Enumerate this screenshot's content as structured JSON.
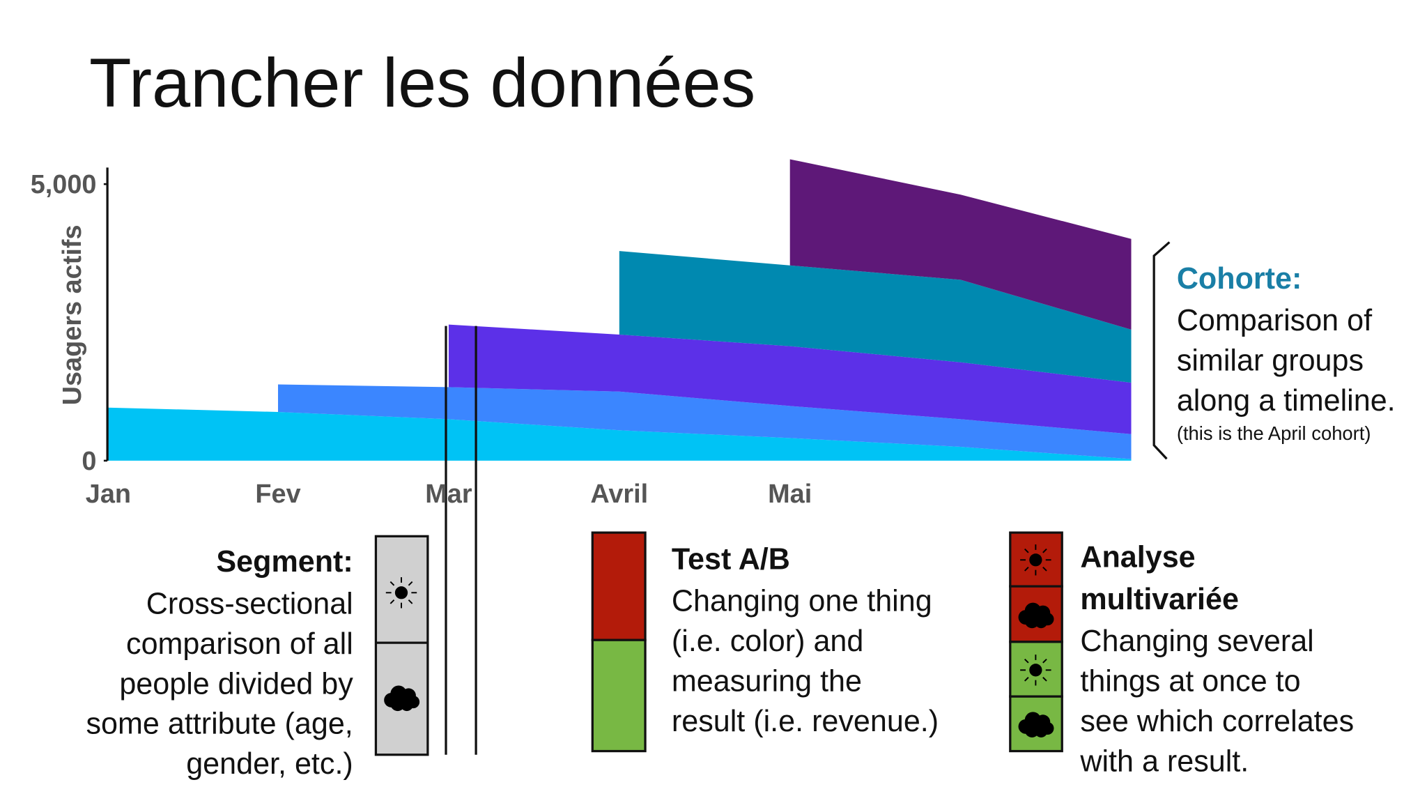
{
  "chart_data": {
    "type": "area",
    "title": "Trancher les données",
    "y_label": "Usagers actifs",
    "categories": [
      "Jan",
      "Fev",
      "Mar",
      "Avril",
      "Mai",
      null,
      null
    ],
    "series": [
      {
        "color": "#00c3f5",
        "values": [
          960,
          880,
          750,
          550,
          410,
          250,
          30
        ]
      },
      {
        "color": "#3b86ff",
        "values": [
          null,
          500,
          580,
          700,
          580,
          500,
          450
        ]
      },
      {
        "color": "#5c30e8",
        "values": [
          null,
          null,
          1130,
          1030,
          1080,
          1030,
          930
        ]
      },
      {
        "color": "#0089b0",
        "values": [
          null,
          null,
          null,
          1510,
          1460,
          1490,
          960
        ]
      },
      {
        "color": "#5e1878",
        "values": [
          null,
          null,
          null,
          null,
          1920,
          1540,
          1640
        ]
      }
    ],
    "ylim": [
      0,
      5300
    ],
    "yticks": [
      0,
      {
        "value": 5000,
        "label": "5,000"
      }
    ],
    "annotations": {
      "cohort": {
        "title": "Cohorte:",
        "lines": [
          "Comparison of",
          "similar groups",
          "along a timeline."
        ],
        "note": "(this is the April cohort)"
      },
      "segment": {
        "title": "Segment:",
        "lines": [
          "Cross-sectional",
          "comparison of all",
          "people divided by",
          "some attribute (age,",
          "gender, etc.)"
        ]
      },
      "ab_test": {
        "title": "Test A/B",
        "lines": [
          "Changing one thing",
          "(i.e. color) and",
          "measuring the",
          "result (i.e. revenue.)"
        ]
      },
      "multivariate": {
        "title": [
          "Analyse",
          "multivariée"
        ],
        "lines": [
          "Changing several",
          "things at once to",
          "see which correlates",
          "with a result."
        ]
      }
    }
  }
}
